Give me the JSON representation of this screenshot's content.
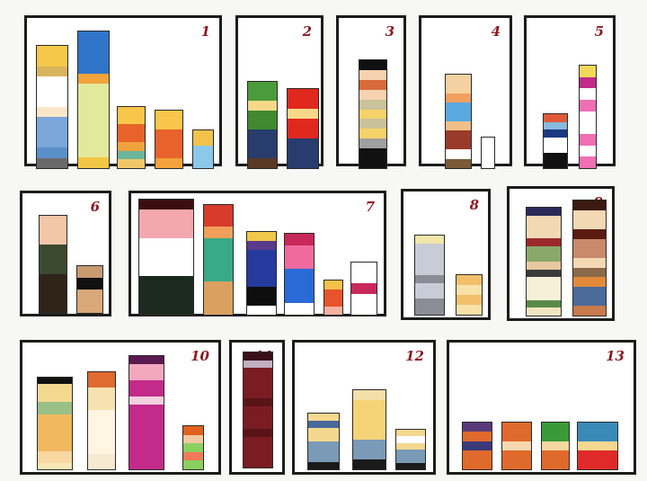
{
  "panels": [
    {
      "id": "1",
      "label": "1",
      "columns": [
        [
          [
            "#f6c84a",
            2
          ],
          [
            "#d9b45e",
            1
          ],
          [
            "#ffffff",
            3
          ],
          [
            "#fbe7c8",
            1
          ],
          [
            "#7aa6d8",
            3
          ],
          [
            "#5b8fc9",
            1
          ],
          [
            "#6a6a6a",
            1
          ]
        ],
        [
          [
            "#2f74c8",
            4
          ],
          [
            "#f2a33c",
            1
          ],
          [
            "#e2e89c",
            7
          ],
          [
            "#f2c645",
            1
          ]
        ],
        [
          [
            "#f7c64a",
            2
          ],
          [
            "#e8632c",
            2
          ],
          [
            "#f0a23e",
            1
          ],
          [
            "#6db59a",
            1
          ],
          [
            "#f0c86a",
            1
          ]
        ],
        [
          [
            "#f7c64a",
            2
          ],
          [
            "#e8632c",
            3
          ],
          [
            "#f2a33c",
            1
          ]
        ],
        [
          [
            "#f3c24a",
            2
          ],
          [
            "#8cc8ea",
            3
          ]
        ]
      ]
    },
    {
      "id": "2",
      "label": "2",
      "columns": [
        [
          [
            "#4a9b3c",
            2
          ],
          [
            "#f7d888",
            1
          ],
          [
            "#3f8a2e",
            2
          ],
          [
            "#283c6e",
            3
          ],
          [
            "#5a3a25",
            1
          ]
        ],
        [
          [
            "#e0281f",
            2
          ],
          [
            "#f7d888",
            1
          ],
          [
            "#e0281f",
            2
          ],
          [
            "#283c6e",
            3
          ]
        ]
      ]
    },
    {
      "id": "3",
      "label": "3",
      "columns": [
        [
          [
            "#111111",
            1
          ],
          [
            "#f6d2b0",
            1
          ],
          [
            "#d96a3a",
            1
          ],
          [
            "#f6d2b0",
            1
          ],
          [
            "#c9c29a",
            1
          ],
          [
            "#f5d26a",
            1
          ],
          [
            "#c9c29a",
            1
          ],
          [
            "#f5d26a",
            1
          ],
          [
            "#a0a0a0",
            1
          ],
          [
            "#111111",
            2
          ]
        ]
      ]
    },
    {
      "id": "4",
      "label": "4",
      "columns": [
        [
          [
            "#f5d0a0",
            2
          ],
          [
            "#f0a060",
            1
          ],
          [
            "#5aa9e0",
            2
          ],
          [
            "#f0c08a",
            1
          ],
          [
            "#9a3a2a",
            2
          ],
          [
            "#ffffff",
            1
          ],
          [
            "#7a5a3a",
            1
          ]
        ],
        [
          [
            "#ffffff",
            1
          ]
        ]
      ]
    },
    {
      "id": "5",
      "label": "5",
      "columns": [
        [
          [
            "#e05a3a",
            1
          ],
          [
            "#8ab8e0",
            1
          ],
          [
            "#1d3a80",
            1
          ],
          [
            "#ffffff",
            2
          ],
          [
            "#111111",
            2
          ]
        ],
        [
          [
            "#f3d95a",
            1
          ],
          [
            "#c02a8a",
            1
          ],
          [
            "#ffffff",
            1
          ],
          [
            "#ee6fb4",
            1
          ],
          [
            "#ffffff",
            2
          ],
          [
            "#ee6fb4",
            1
          ],
          [
            "#ffffff",
            1
          ],
          [
            "#ee6fb4",
            1
          ]
        ]
      ]
    },
    {
      "id": "6",
      "label": "6",
      "columns": [
        [
          [
            "#f3c6a8",
            3
          ],
          [
            "#3b4a2e",
            3
          ],
          [
            "#2e2418",
            4
          ]
        ],
        [
          [
            "#c89a70",
            1
          ],
          [
            "#111111",
            1
          ],
          [
            "#d9a878",
            2
          ]
        ]
      ]
    },
    {
      "id": "7",
      "label": "7",
      "columns": [
        [
          [
            "#3a0e10",
            1
          ],
          [
            "#f3a8ae",
            3
          ],
          [
            "#ffffff",
            4
          ],
          [
            "#1b2a1e",
            4
          ]
        ],
        [
          [
            "#d63b2c",
            2
          ],
          [
            "#f0a05a",
            1
          ],
          [
            "#3aa986",
            4
          ],
          [
            "#d9a060",
            3
          ]
        ],
        [
          [
            "#f2c84a",
            1
          ],
          [
            "#5a3a8a",
            1
          ],
          [
            "#263a9e",
            4
          ],
          [
            "#0e0e0e",
            2
          ],
          [
            "#ffffff",
            1
          ]
        ],
        [
          [
            "#c8285a",
            1
          ],
          [
            "#f06aa0",
            2
          ],
          [
            "#2a6ad6",
            3
          ],
          [
            "#ffffff",
            1
          ]
        ],
        [
          [
            "#f3c14a",
            1
          ],
          [
            "#e6532c",
            2
          ],
          [
            "#f5b0a0",
            1
          ]
        ],
        [
          [
            "#ffffff",
            2
          ],
          [
            "#c8285a",
            1
          ],
          [
            "#ffffff",
            2
          ]
        ]
      ]
    },
    {
      "id": "8",
      "label": "8",
      "columns": [
        [
          [
            "#f2e6a8",
            1
          ],
          [
            "#c8ccd6",
            4
          ],
          [
            "#8c8c96",
            1
          ],
          [
            "#c8ccd6",
            2
          ],
          [
            "#8c8c96",
            2
          ]
        ],
        [
          [
            "#f2c06a",
            1
          ],
          [
            "#f8e2a8",
            1
          ],
          [
            "#f2c06a",
            1
          ],
          [
            "#f8e2a8",
            1
          ]
        ]
      ]
    },
    {
      "id": "9",
      "label": "9",
      "columns": [
        [
          [
            "#2a2a5a",
            1
          ],
          [
            "#f3d8b4",
            3
          ],
          [
            "#9a2a2a",
            1
          ],
          [
            "#8aa86a",
            2
          ],
          [
            "#e8c8a0",
            1
          ],
          [
            "#3a3a3a",
            1
          ],
          [
            "#f6f0d8",
            3
          ],
          [
            "#5a8a4a",
            1
          ],
          [
            "#f0e6c0",
            1
          ]
        ],
        [
          [
            "#3a1a12",
            1
          ],
          [
            "#f3d8b4",
            2
          ],
          [
            "#5a1a10",
            1
          ],
          [
            "#c88a6a",
            2
          ],
          [
            "#f3d8b4",
            1
          ],
          [
            "#8a6a4a",
            1
          ],
          [
            "#e08a3a",
            1
          ],
          [
            "#4a6a9a",
            2
          ],
          [
            "#c87a4a",
            1
          ]
        ]
      ]
    },
    {
      "id": "10",
      "label": "10",
      "columns": [
        [
          [
            "#111111",
            1
          ],
          [
            "#f3d890",
            3
          ],
          [
            "#9ac088",
            2
          ],
          [
            "#f2b860",
            6
          ],
          [
            "#f6d8a0",
            2
          ],
          [
            "#f8e8b8",
            1
          ]
        ],
        [
          [
            "#e06a30",
            2
          ],
          [
            "#f6e2b0",
            3
          ],
          [
            "#fff5e0",
            6
          ],
          [
            "#f5ead0",
            2
          ]
        ],
        [
          [
            "#5a1a50",
            1
          ],
          [
            "#f3a8c0",
            2
          ],
          [
            "#c32a8a",
            2
          ],
          [
            "#f3d0e0",
            1
          ],
          [
            "#c32a8a",
            8
          ]
        ],
        [
          [
            "#e0621c",
            1
          ],
          [
            "#f2c8a0",
            1
          ],
          [
            "#8ad060",
            1
          ],
          [
            "#f07a5a",
            1
          ],
          [
            "#8ad060",
            1
          ]
        ]
      ]
    },
    {
      "id": "11",
      "label": "11",
      "columns": [
        [
          [
            "#3a1018",
            1
          ],
          [
            "#c0b0c0",
            1
          ],
          [
            "#7a1c22",
            4
          ],
          [
            "#5a1418",
            1
          ],
          [
            "#7a1c22",
            3
          ],
          [
            "#5a1418",
            1
          ],
          [
            "#7a1c22",
            4
          ]
        ]
      ]
    },
    {
      "id": "12",
      "label": "12",
      "columns": [
        [
          [
            "#f5d890",
            1
          ],
          [
            "#4a6a9a",
            1
          ],
          [
            "#f5d890",
            2
          ],
          [
            "#7a9ab8",
            3
          ],
          [
            "#1a1a1a",
            1
          ]
        ],
        [
          [
            "#f2e0a8",
            1
          ],
          [
            "#f5d478",
            4
          ],
          [
            "#7a9ab8",
            2
          ],
          [
            "#1a1a1a",
            1
          ]
        ],
        [
          [
            "#f5d890",
            1
          ],
          [
            "#ffffff",
            1
          ],
          [
            "#f5d890",
            1
          ],
          [
            "#7a9ab8",
            2
          ],
          [
            "#1a1a1a",
            1
          ]
        ]
      ]
    },
    {
      "id": "13",
      "label": "13",
      "columns": [
        [
          [
            "#5a3a7a",
            1
          ],
          [
            "#e06a2c",
            1
          ],
          [
            "#3a3a7a",
            1
          ],
          [
            "#e06a2c",
            2
          ]
        ],
        [
          [
            "#e06a2c",
            2
          ],
          [
            "#f5d8b0",
            1
          ],
          [
            "#e06a2c",
            2
          ]
        ],
        [
          [
            "#3a9a3a",
            2
          ],
          [
            "#f5d8a0",
            1
          ],
          [
            "#e06a2c",
            2
          ]
        ],
        [
          [
            "#3a8ab8",
            2
          ],
          [
            "#f5d890",
            1
          ],
          [
            "#e02a2a",
            2
          ]
        ]
      ]
    }
  ]
}
